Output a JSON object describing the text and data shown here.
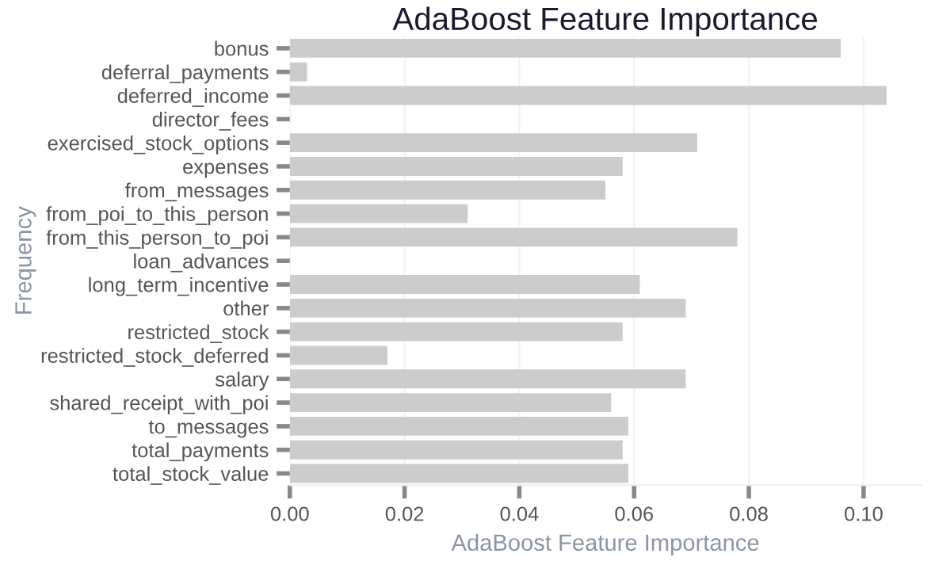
{
  "chart_data": {
    "type": "bar",
    "orientation": "horizontal",
    "title": "AdaBoost Feature Importance",
    "xlabel": "AdaBoost Feature Importance",
    "ylabel": "Frequency",
    "categories": [
      "bonus",
      "deferral_payments",
      "deferred_income",
      "director_fees",
      "exercised_stock_options",
      "expenses",
      "from_messages",
      "from_poi_to_this_person",
      "from_this_person_to_poi",
      "loan_advances",
      "long_term_incentive",
      "other",
      "restricted_stock",
      "restricted_stock_deferred",
      "salary",
      "shared_receipt_with_poi",
      "to_messages",
      "total_payments",
      "total_stock_value"
    ],
    "values": [
      0.096,
      0.003,
      0.104,
      0,
      0.071,
      0.058,
      0.055,
      0.031,
      0.078,
      0,
      0.061,
      0.069,
      0.058,
      0.017,
      0.069,
      0.056,
      0.059,
      0.058,
      0.059
    ],
    "color": "#cccccc",
    "xlim": [
      0,
      0.11
    ],
    "xticks": [
      {
        "value": 0,
        "label": "0.00"
      },
      {
        "value": 0.02,
        "label": "0.02"
      },
      {
        "value": 0.04,
        "label": "0.04"
      },
      {
        "value": 0.06,
        "label": "0.06"
      },
      {
        "value": 0.08,
        "label": "0.08"
      },
      {
        "value": 0.1,
        "label": "0.10"
      }
    ],
    "grid": "x",
    "legend": false
  }
}
